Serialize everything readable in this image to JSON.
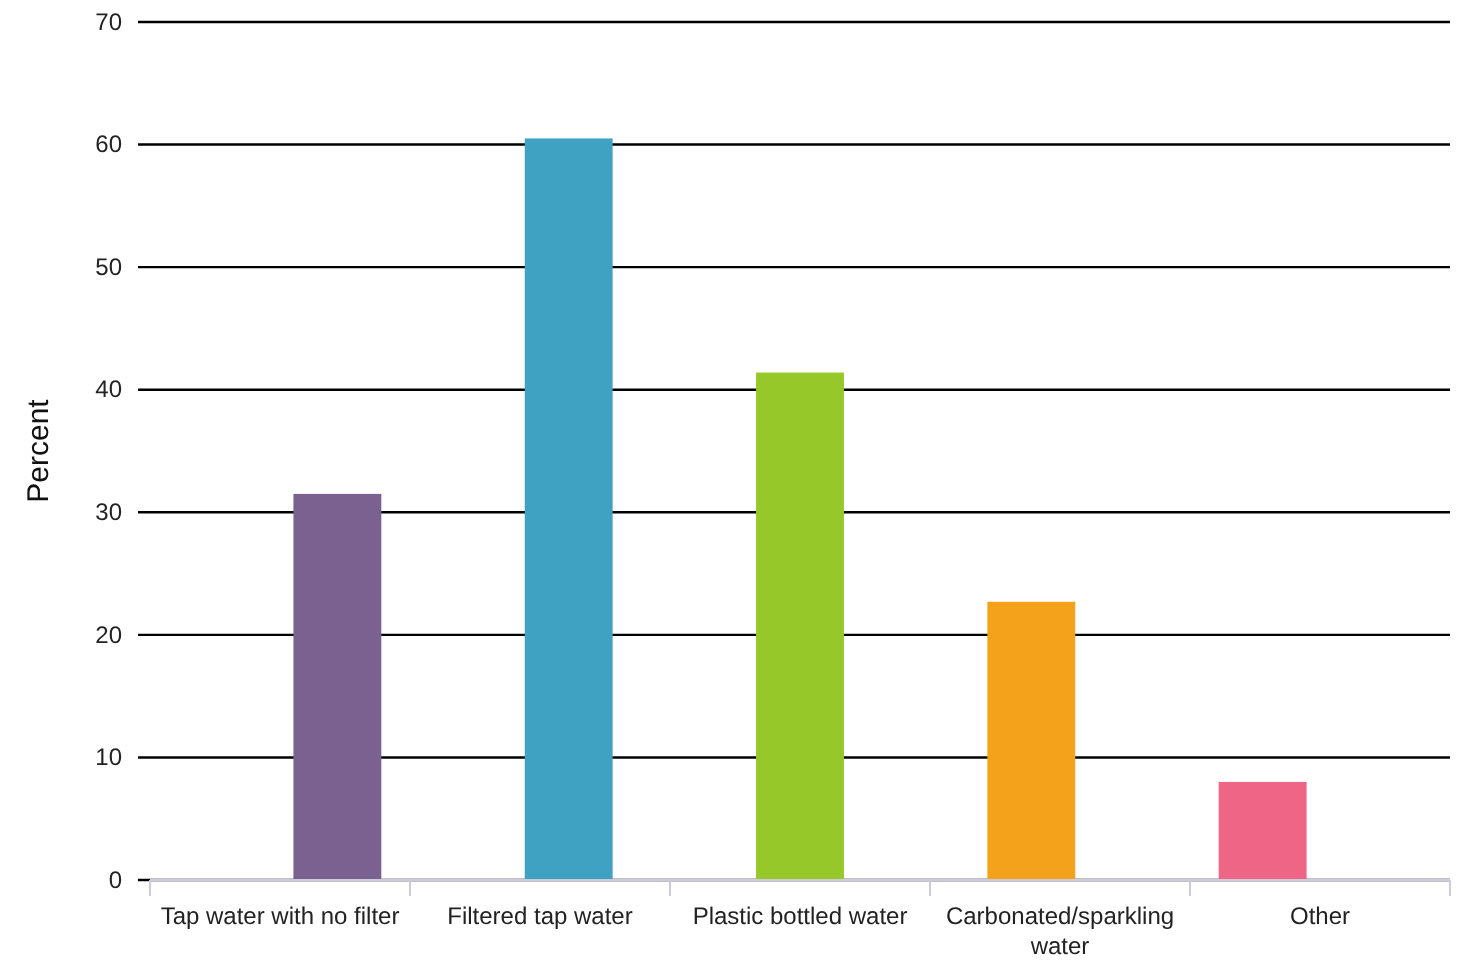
{
  "chart_data": {
    "type": "bar",
    "ylabel": "Percent",
    "categories": [
      "Tap water with no filter",
      "Filtered tap water",
      "Plastic bottled water",
      "Carbonated/sparkling water",
      "Other"
    ],
    "values": [
      31.5,
      60.5,
      41.4,
      22.7,
      8.0
    ],
    "colors": [
      "#7b6190",
      "#40a2c2",
      "#95c828",
      "#f4a21c",
      "#ef6586"
    ],
    "ylim": [
      0,
      70
    ],
    "yticks": [
      0,
      10,
      20,
      30,
      40,
      50,
      60,
      70
    ],
    "grid": "y"
  }
}
